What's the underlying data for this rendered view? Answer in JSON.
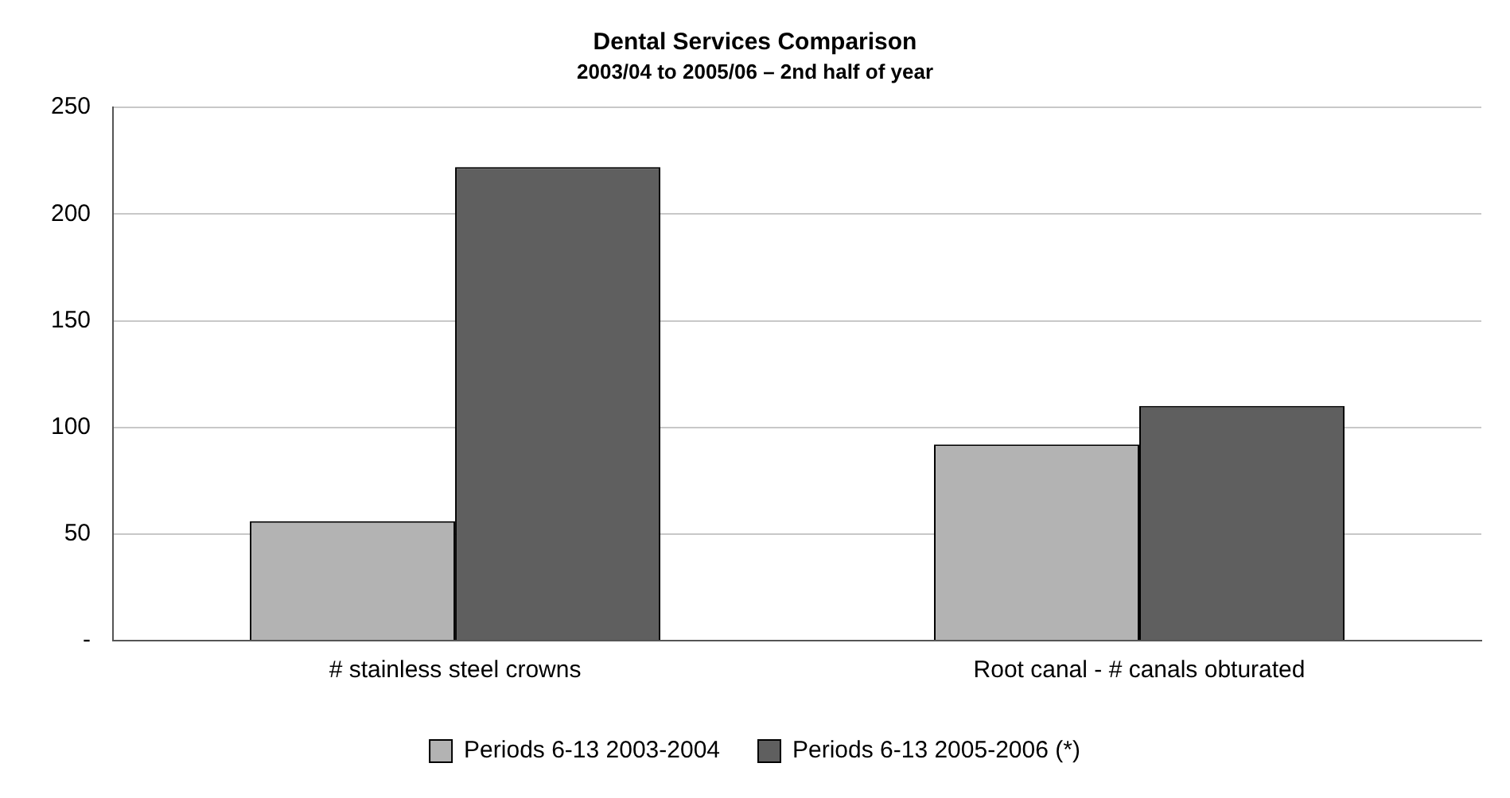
{
  "chart_data": {
    "type": "bar",
    "title": "Dental Services Comparison",
    "subtitle": "2003/04 to 2005/06 – 2nd half of year",
    "categories": [
      "# stainless steel crowns",
      "Root canal - # canals obturated"
    ],
    "series": [
      {
        "name": "Periods 6-13 2003-2004",
        "color": "#b3b3b3",
        "values": [
          56,
          92
        ]
      },
      {
        "name": "Periods 6-13 2005-2006 (*)",
        "color": "#5f5f5f",
        "values": [
          222,
          110
        ]
      }
    ],
    "ylim": [
      0,
      250
    ],
    "yticks": [
      {
        "value": 0,
        "label": "-"
      },
      50,
      100,
      150,
      200,
      250
    ],
    "grid": "y",
    "legend": "bottom"
  }
}
